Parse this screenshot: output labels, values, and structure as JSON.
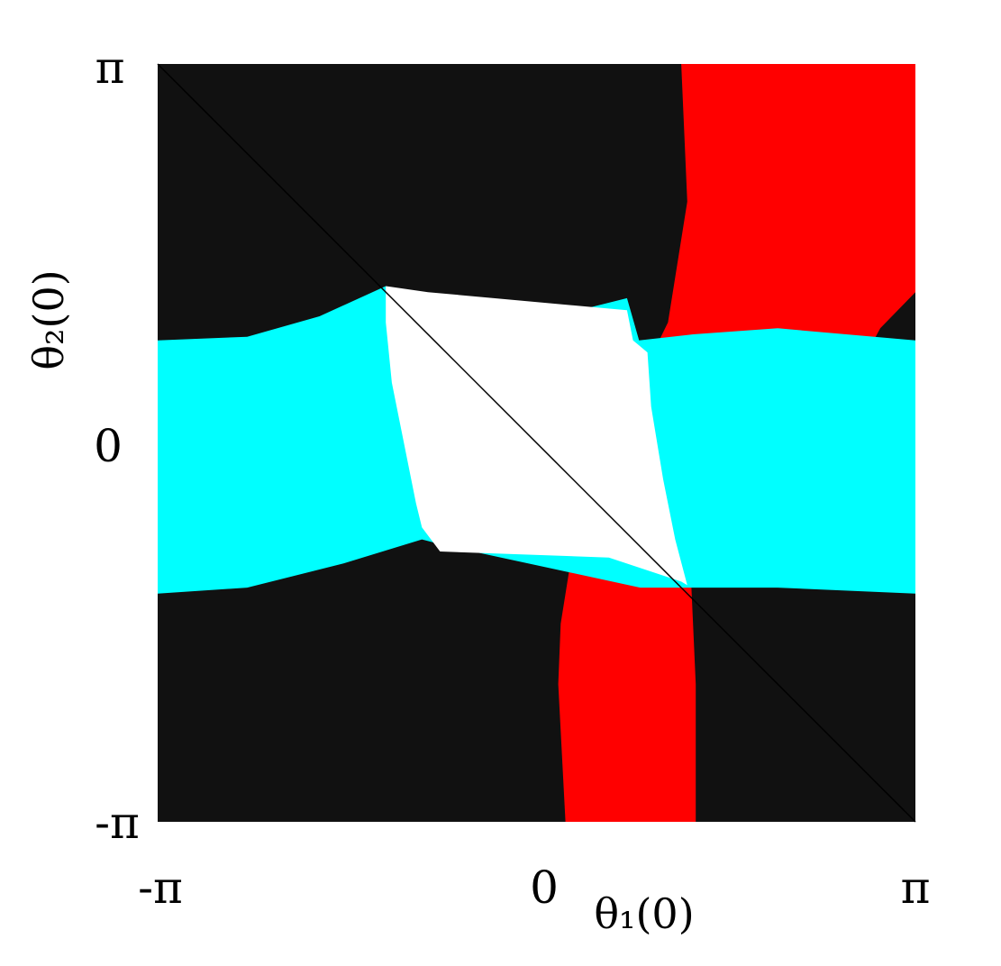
{
  "chart_data": {
    "type": "heatmap",
    "title": "",
    "xlabel": "θ₁(0)",
    "ylabel": "θ₂(0)",
    "x_ticks": [
      "-π",
      "0",
      "π"
    ],
    "y_ticks": [
      "-π",
      "0",
      "π"
    ],
    "xlim": [
      -3.14159,
      3.14159
    ],
    "ylim": [
      -3.14159,
      3.14159
    ],
    "grid": false,
    "colors": {
      "background": "#111111",
      "vertical_band": "#ff0000",
      "horizontal_band": "#00ffff",
      "center": "#ffffff",
      "diagonal": "#000000"
    },
    "regions": {
      "vertical_band": {
        "color_key": "vertical_band",
        "left_edge": [
          [
            0.24,
            -3.14159
          ],
          [
            0.18,
            -2.0
          ],
          [
            0.2,
            -1.5
          ],
          [
            0.28,
            -1.0
          ],
          [
            0.4,
            -0.95
          ],
          [
            0.92,
            0.65
          ],
          [
            1.09,
            1.0
          ],
          [
            1.25,
            2.0
          ],
          [
            1.2,
            3.14159
          ]
        ],
        "right_edge": [
          [
            1.32,
            -3.14159
          ],
          [
            1.32,
            -2.0
          ],
          [
            1.28,
            -1.1
          ],
          [
            1.6,
            -0.95
          ],
          [
            2.66,
            0.6
          ],
          [
            2.85,
            0.95
          ],
          [
            3.14159,
            1.25
          ],
          [
            3.14159,
            2.0
          ],
          [
            3.14159,
            3.14159
          ]
        ]
      },
      "horizontal_band": {
        "color_key": "horizontal_band",
        "top_edge": [
          [
            -3.14159,
            0.85
          ],
          [
            -2.4,
            0.88
          ],
          [
            -1.8,
            1.05
          ],
          [
            -1.25,
            1.3
          ],
          [
            -0.85,
            0.8
          ],
          [
            0.75,
            1.2
          ],
          [
            0.85,
            0.85
          ],
          [
            1.3,
            0.9
          ],
          [
            2.0,
            0.95
          ],
          [
            3.14159,
            0.85
          ]
        ],
        "bottom_edge": [
          [
            -3.14159,
            -1.25
          ],
          [
            -2.4,
            -1.2
          ],
          [
            -1.6,
            -1.0
          ],
          [
            -0.95,
            -0.8
          ],
          [
            -0.76,
            -0.85
          ],
          [
            0.86,
            -1.2
          ],
          [
            1.3,
            -1.2
          ],
          [
            2.0,
            -1.2
          ],
          [
            3.14159,
            -1.25
          ]
        ]
      },
      "center": {
        "color_key": "center",
        "outline": [
          [
            -1.25,
            1.3
          ],
          [
            -0.9,
            1.25
          ],
          [
            0.75,
            1.1
          ],
          [
            0.8,
            0.85
          ],
          [
            0.92,
            0.75
          ],
          [
            0.95,
            0.3
          ],
          [
            1.05,
            -0.3
          ],
          [
            1.15,
            -0.8
          ],
          [
            1.25,
            -1.18
          ],
          [
            1.2,
            -1.15
          ],
          [
            0.6,
            -0.95
          ],
          [
            -0.8,
            -0.9
          ],
          [
            -0.95,
            -0.7
          ],
          [
            -1.0,
            -0.5
          ],
          [
            -1.1,
            0.0
          ],
          [
            -1.2,
            0.5
          ],
          [
            -1.25,
            1.0
          ]
        ]
      }
    }
  }
}
